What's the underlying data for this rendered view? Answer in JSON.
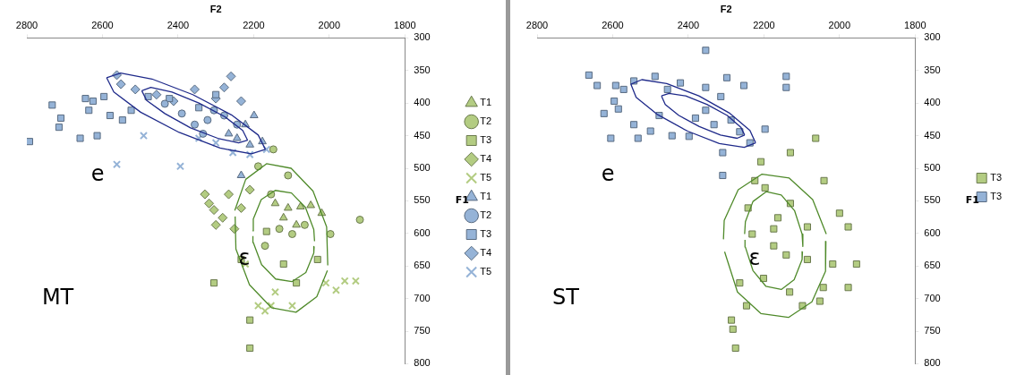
{
  "chart_data": [
    {
      "type": "scatter",
      "xlabel": "F2",
      "ylabel": "F1",
      "xlim": [
        2800,
        1800
      ],
      "xticks": [
        2800,
        2600,
        2400,
        2200,
        2000,
        1800
      ],
      "ylim": [
        800,
        300
      ],
      "yticks": [
        300,
        350,
        400,
        450,
        500,
        550,
        600,
        650,
        700,
        750,
        800
      ],
      "grid": false,
      "legend": "right",
      "annotations": [
        "e",
        "ε",
        "MT"
      ],
      "series": [
        {
          "name": "T1",
          "color": "#b3cc82",
          "marker": "triangle",
          "x": [
            2143,
            2109,
            2076,
            2049,
            2020,
            2121,
            2087
          ],
          "values": [
            554,
            561,
            559,
            557,
            569,
            576,
            587
          ]
        },
        {
          "name": "T2",
          "color": "#b3cc82",
          "marker": "circle",
          "x": [
            2148,
            2109,
            2188,
            2154,
            2132,
            2098,
            2170,
            2065,
            1919,
            1997
          ],
          "values": [
            471,
            511,
            497,
            540,
            593,
            601,
            619,
            587,
            579,
            601
          ]
        },
        {
          "name": "T3",
          "color": "#b3cc82",
          "marker": "square",
          "x": [
            2210,
            2305,
            2233,
            2166,
            2121,
            2087,
            2210,
            2031
          ],
          "values": [
            776,
            676,
            640,
            597,
            647,
            676,
            733,
            640
          ]
        },
        {
          "name": "T4",
          "color": "#b3cc82",
          "marker": "diamond",
          "x": [
            2329,
            2318,
            2305,
            2282,
            2300,
            2233,
            2251,
            2266,
            2210
          ],
          "values": [
            540,
            554,
            564,
            576,
            587,
            561,
            593,
            540,
            533
          ]
        },
        {
          "name": "T5",
          "color": "#b3cc82",
          "marker": "cross",
          "x": [
            2188,
            2170,
            2154,
            2098,
            2143,
            2009,
            1982,
            1959,
            1930,
            2222
          ],
          "values": [
            711,
            719,
            711,
            711,
            690,
            676,
            687,
            673,
            673,
            647
          ]
        },
        {
          "name": "T1",
          "color": "#95b3d7",
          "marker": "triangle",
          "x": [
            2266,
            2244,
            2222,
            2210,
            2177,
            2233,
            2199
          ],
          "values": [
            447,
            454,
            433,
            464,
            459,
            511,
            419
          ]
        },
        {
          "name": "T2",
          "color": "#95b3d7",
          "marker": "circle",
          "x": [
            2435,
            2390,
            2356,
            2322,
            2305,
            2278,
            2244,
            2334
          ],
          "values": [
            401,
            416,
            433,
            426,
            411,
            419,
            433,
            447
          ]
        },
        {
          "name": "T3",
          "color": "#95b3d7",
          "marker": "square",
          "x": [
            2793,
            2733,
            2710,
            2715,
            2659,
            2645,
            2636,
            2625,
            2596,
            2580,
            2547,
            2524,
            2479,
            2614,
            2423,
            2345,
            2300
          ],
          "values": [
            459,
            403,
            423,
            437,
            454,
            393,
            411,
            397,
            390,
            419,
            426,
            411,
            390,
            450,
            393,
            407,
            387
          ]
        },
        {
          "name": "T4",
          "color": "#95b3d7",
          "marker": "diamond",
          "x": [
            2562,
            2551,
            2513,
            2457,
            2412,
            2356,
            2300,
            2260,
            2278,
            2233
          ],
          "values": [
            357,
            371,
            379,
            387,
            397,
            379,
            393,
            359,
            376,
            397
          ]
        },
        {
          "name": "T5",
          "color": "#95b3d7",
          "marker": "cross",
          "x": [
            2562,
            2394,
            2491,
            2300,
            2255,
            2210,
            2166,
            2345
          ],
          "values": [
            494,
            497,
            450,
            461,
            476,
            479,
            471,
            454
          ]
        },
        {
          "type": "line",
          "color": "#1f2a8a",
          "marker": "none",
          "x": [
            2169,
            2206,
            2289,
            2397,
            2499,
            2570,
            2589
          ],
          "values": [
            471,
            478,
            469,
            445,
            414,
            383,
            361
          ]
        },
        {
          "type": "line",
          "color": "#1f2a8a",
          "marker": "none",
          "x": [
            2589,
            2552,
            2469,
            2361,
            2259,
            2188,
            2169
          ],
          "values": [
            361,
            354,
            363,
            387,
            418,
            449,
            471
          ]
        },
        {
          "type": "line",
          "color": "#1f2a8a",
          "marker": "none",
          "x": [
            2216,
            2240,
            2295,
            2367,
            2435,
            2483,
            2496
          ],
          "values": [
            457,
            461,
            454,
            438,
            416,
            396,
            381
          ]
        },
        {
          "type": "line",
          "color": "#1f2a8a",
          "marker": "none",
          "x": [
            2496,
            2472,
            2416,
            2345,
            2276,
            2229,
            2216
          ],
          "values": [
            381,
            376,
            383,
            400,
            421,
            442,
            457
          ]
        },
        {
          "type": "line",
          "color": "#4f8a2a",
          "marker": "none",
          "x": [
            2250,
            2221,
            2166,
            2101,
            2043,
            2007,
            2004
          ],
          "values": [
            565,
            517,
            493,
            500,
            535,
            590,
            649
          ]
        },
        {
          "type": "line",
          "color": "#4f8a2a",
          "marker": "none",
          "x": [
            2005,
            2033,
            2088,
            2153,
            2211,
            2247,
            2249
          ],
          "values": [
            657,
            697,
            721,
            714,
            679,
            624,
            574
          ]
        },
        {
          "type": "line",
          "color": "#4f8a2a",
          "marker": "none",
          "x": [
            2203,
            2201,
            2180,
            2143,
            2100,
            2063,
            2041,
            2039
          ],
          "values": [
            596,
            578,
            548,
            534,
            538,
            560,
            594,
            612
          ]
        },
        {
          "type": "line",
          "color": "#4f8a2a",
          "marker": "none",
          "x": [
            2040,
            2041,
            2062,
            2099,
            2142,
            2179,
            2201,
            2202
          ],
          "values": [
            620,
            630,
            660,
            674,
            670,
            648,
            614,
            604
          ]
        }
      ]
    },
    {
      "type": "scatter",
      "xlabel": "F2",
      "ylabel": "F1",
      "xlim": [
        2800,
        1800
      ],
      "xticks": [
        2800,
        2600,
        2400,
        2200,
        2000,
        1800
      ],
      "ylim": [
        800,
        300
      ],
      "yticks": [
        300,
        350,
        400,
        450,
        500,
        550,
        600,
        650,
        700,
        750,
        800
      ],
      "grid": false,
      "legend": "right",
      "annotations": [
        "e",
        "ε",
        "ST"
      ],
      "series": [
        {
          "name": "T3",
          "color": "#b3cc82",
          "marker": "square",
          "x": [
            2275,
            2286,
            2282,
            2246,
            2130,
            2063,
            2208,
            2224,
            2197,
            2242,
            2130,
            2041,
            2000,
            1977,
            2085,
            2174,
            2231,
            2141,
            2085,
            2018,
            2132,
            2043,
            1977,
            1955,
            2098,
            2201,
            2264,
            2174,
            2163,
            2052
          ],
          "values": [
            776,
            733,
            747,
            711,
            476,
            454,
            490,
            519,
            530,
            561,
            554,
            519,
            569,
            590,
            590,
            593,
            601,
            633,
            640,
            647,
            690,
            683,
            683,
            647,
            711,
            669,
            676,
            619,
            576,
            704
          ]
        },
        {
          "name": "T3",
          "color": "#95b3d7",
          "marker": "square",
          "x": [
            2663,
            2641,
            2592,
            2623,
            2585,
            2596,
            2571,
            2544,
            2605,
            2500,
            2544,
            2488,
            2455,
            2421,
            2354,
            2298,
            2253,
            2354,
            2141,
            2141,
            2381,
            2332,
            2287,
            2264,
            2443,
            2398,
            2354,
            2314,
            2197,
            2237,
            2309,
            2533,
            2477,
            2309
          ],
          "values": [
            357,
            373,
            373,
            416,
            409,
            397,
            379,
            433,
            454,
            443,
            366,
            359,
            379,
            369,
            376,
            361,
            373,
            319,
            359,
            376,
            423,
            433,
            426,
            444,
            450,
            451,
            411,
            390,
            440,
            461,
            511,
            454,
            419,
            476
          ]
        },
        {
          "type": "line",
          "color": "#1f2a8a",
          "marker": "none",
          "x": [
            2222,
            2252,
            2318,
            2402,
            2483,
            2538,
            2552
          ],
          "values": [
            461,
            468,
            462,
            443,
            417,
            391,
            371
          ]
        },
        {
          "type": "line",
          "color": "#1f2a8a",
          "marker": "none",
          "x": [
            2552,
            2523,
            2457,
            2372,
            2292,
            2237,
            2222
          ],
          "values": [
            371,
            364,
            370,
            389,
            415,
            442,
            461
          ]
        },
        {
          "type": "line",
          "color": "#1f2a8a",
          "marker": "none",
          "x": [
            2251,
            2271,
            2315,
            2371,
            2425,
            2461,
            2471
          ],
          "values": [
            449,
            454,
            449,
            436,
            419,
            402,
            389
          ]
        },
        {
          "type": "line",
          "color": "#1f2a8a",
          "marker": "none",
          "x": [
            2471,
            2451,
            2407,
            2351,
            2297,
            2261,
            2251
          ],
          "values": [
            389,
            385,
            389,
            402,
            419,
            437,
            449
          ]
        },
        {
          "type": "line",
          "color": "#4f8a2a",
          "marker": "none",
          "x": [
            2307,
            2305,
            2268,
            2205,
            2133,
            2071,
            2035
          ],
          "values": [
            609,
            580,
            533,
            509,
            515,
            548,
            601
          ]
        },
        {
          "type": "line",
          "color": "#4f8a2a",
          "marker": "none",
          "x": [
            2036,
            2037,
            2073,
            2135,
            2208,
            2270,
            2304
          ],
          "values": [
            612,
            658,
            705,
            729,
            723,
            690,
            628
          ]
        },
        {
          "type": "line",
          "color": "#4f8a2a",
          "marker": "none",
          "x": [
            2251,
            2249,
            2229,
            2194,
            2154,
            2119,
            2099,
            2097
          ],
          "values": [
            601,
            582,
            551,
            536,
            541,
            565,
            601,
            620
          ]
        },
        {
          "type": "line",
          "color": "#4f8a2a",
          "marker": "none",
          "x": [
            2098,
            2099,
            2120,
            2154,
            2195,
            2229,
            2249,
            2250
          ],
          "values": [
            628,
            640,
            671,
            686,
            681,
            657,
            621,
            610
          ]
        }
      ]
    }
  ]
}
